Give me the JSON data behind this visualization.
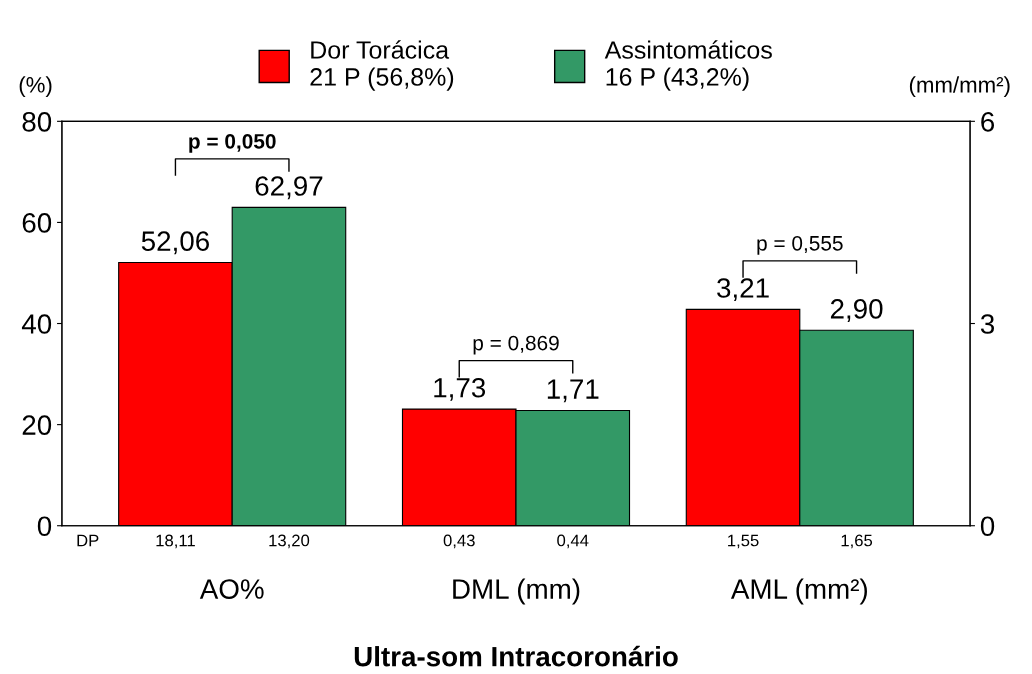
{
  "chart_data": {
    "type": "bar",
    "xlabel": "Ultra-som Intracoronário",
    "ylabel": "(%)",
    "y2label": "(mm/mm²)",
    "categories": [
      "AO%",
      "DML (mm)",
      "AML (mm²)"
    ],
    "series": [
      {
        "name": "Dor Torácica\n21 P (56,8%)",
        "color": "#ff0000",
        "values": [
          52.06,
          null,
          null
        ],
        "value_labels": [
          "52,06",
          null,
          null
        ]
      },
      {
        "name": "Assintomáticos\n16 P (43,2%)",
        "color": "#339966",
        "values": [
          62.97,
          null,
          null
        ],
        "value_labels": [
          "62,97",
          null,
          null
        ]
      },
      {
        "color": "#ff0000",
        "axis": "y2",
        "values": [
          null,
          1.73,
          3.21
        ],
        "value_labels": [
          null,
          "1,73",
          "3,21"
        ]
      },
      {
        "color": "#339966",
        "axis": "y2",
        "values": [
          null,
          1.71,
          2.9
        ],
        "value_labels": [
          null,
          "1,71",
          "2,90"
        ]
      }
    ],
    "ylim": [
      0,
      80
    ],
    "yticks": [
      0,
      20,
      40,
      60,
      80
    ],
    "y2lim": [
      0,
      6
    ],
    "y2ticks": [
      0,
      3,
      6
    ],
    "legend": "top",
    "grid": false,
    "annotations": [
      "p = 0,050",
      "p = 0,869",
      "p = 0,555",
      "DP",
      "18,11",
      "13,20",
      "0,43",
      "0,44",
      "1,55",
      "1,65"
    ]
  }
}
